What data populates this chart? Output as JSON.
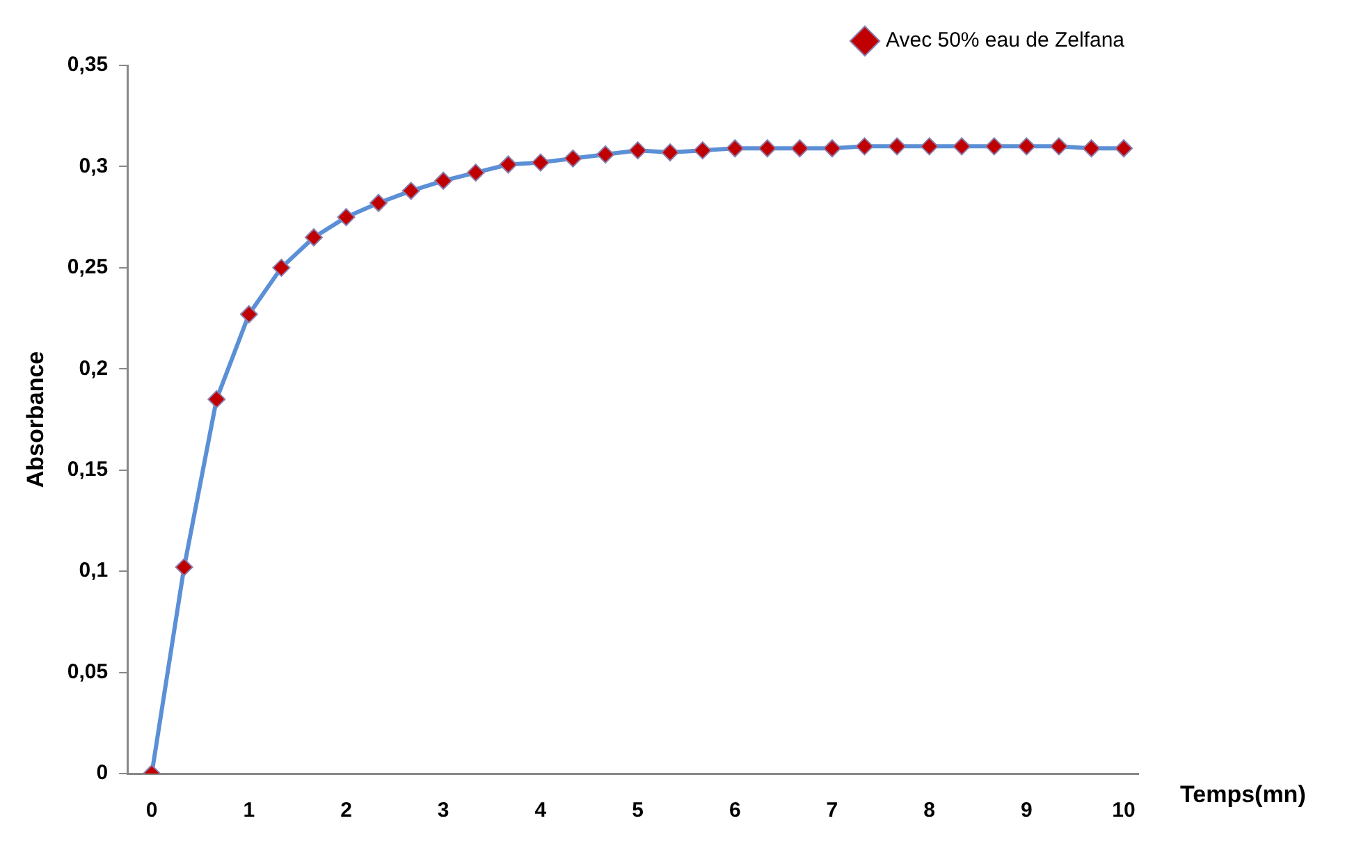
{
  "chart_data": {
    "type": "line",
    "xlabel": "Temps(mn)",
    "ylabel": "Absorbance",
    "x": [
      0,
      0.333,
      0.667,
      1,
      1.333,
      1.667,
      2,
      2.333,
      2.667,
      3,
      3.333,
      3.667,
      4,
      4.333,
      4.667,
      5,
      5.333,
      5.667,
      6,
      6.333,
      6.667,
      7,
      7.333,
      7.667,
      8,
      8.333,
      8.667,
      9,
      9.333,
      9.667,
      10
    ],
    "series": [
      {
        "name": "Avec 50% eau de Zelfana",
        "color": "#5b8fd6",
        "values": [
          0,
          0.102,
          0.185,
          0.227,
          0.25,
          0.265,
          0.275,
          0.282,
          0.288,
          0.293,
          0.297,
          0.301,
          0.302,
          0.304,
          0.306,
          0.308,
          0.307,
          0.308,
          0.309,
          0.309,
          0.309,
          0.309,
          0.31,
          0.31,
          0.31,
          0.31,
          0.31,
          0.31,
          0.31,
          0.309,
          0.309
        ]
      }
    ],
    "xlim": [
      -0.25,
      10.15
    ],
    "xticks": [
      0,
      1,
      2,
      3,
      4,
      5,
      6,
      7,
      8,
      9,
      10
    ],
    "ylim": [
      0,
      0.35
    ],
    "yticks": [
      {
        "value": 0,
        "label": "0"
      },
      {
        "value": 0.05,
        "label": "0,05"
      },
      {
        "value": 0.1,
        "label": "0,1"
      },
      {
        "value": 0.15,
        "label": "0,15"
      },
      {
        "value": 0.2,
        "label": "0,2"
      },
      {
        "value": 0.25,
        "label": "0,25"
      },
      {
        "value": 0.3,
        "label": "0,3"
      },
      {
        "value": 0.35,
        "label": "0,35"
      }
    ],
    "grid": false,
    "legend": "top right",
    "marker": "diamond",
    "line_style": "solid"
  }
}
